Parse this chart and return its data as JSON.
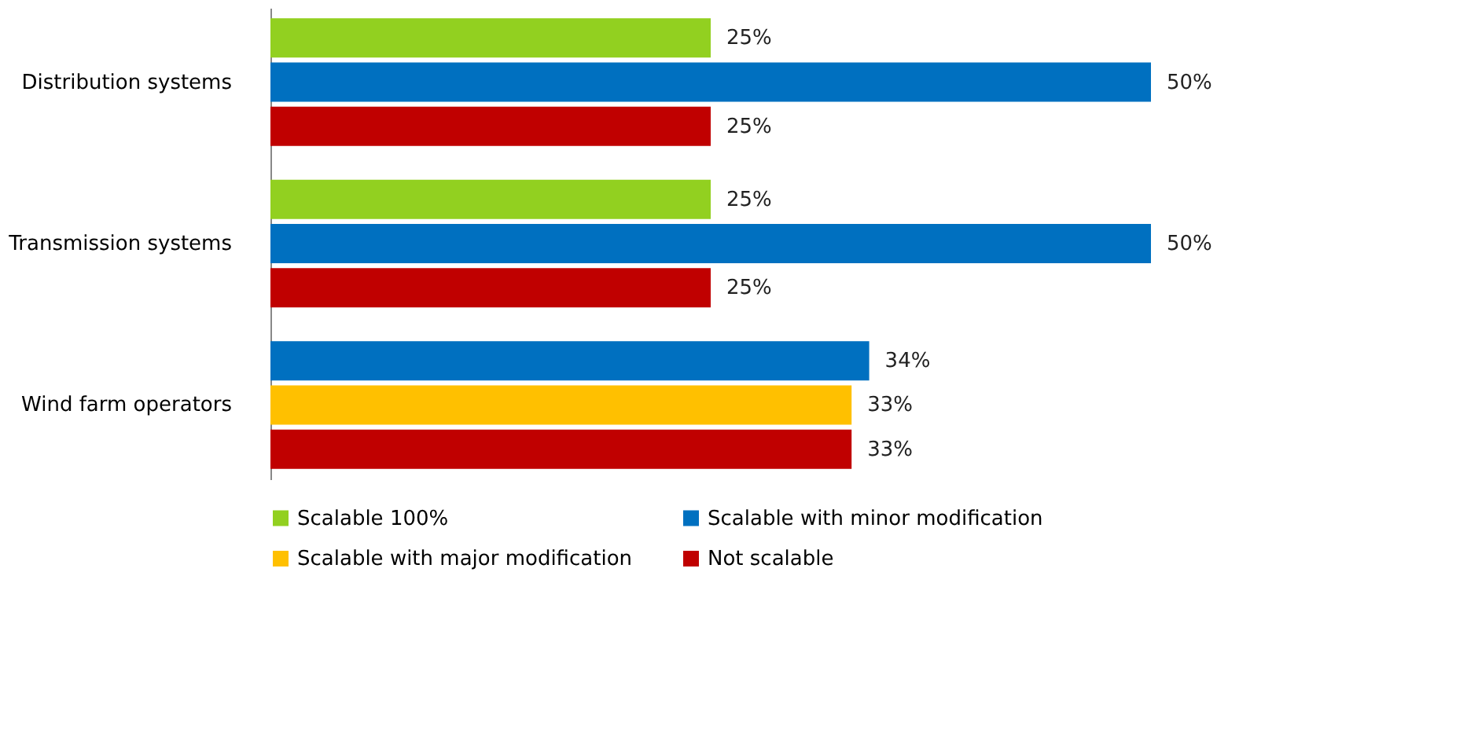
{
  "chart_data": {
    "type": "bar",
    "orientation": "horizontal",
    "categories": [
      "Distribution systems",
      "Transmission systems",
      "Wind farm operators"
    ],
    "series": [
      {
        "name": "Scalable 100%",
        "color": "#92d020",
        "values": [
          25,
          25,
          null
        ],
        "value_labels": [
          "25%",
          "25%",
          null
        ]
      },
      {
        "name": "Scalable with minor modification",
        "color": "#0070c0",
        "values": [
          50,
          50,
          34
        ],
        "value_labels": [
          "50%",
          "50%",
          "34%"
        ]
      },
      {
        "name": "Scalable with major modification",
        "color": "#ffc000",
        "values": [
          null,
          null,
          33
        ],
        "value_labels": [
          null,
          null,
          "33%"
        ]
      },
      {
        "name": "Not scalable",
        "color": "#c00000",
        "values": [
          25,
          25,
          33
        ],
        "value_labels": [
          "25%",
          "25%",
          "33%"
        ]
      }
    ],
    "legend": "bottom",
    "grid": false
  }
}
